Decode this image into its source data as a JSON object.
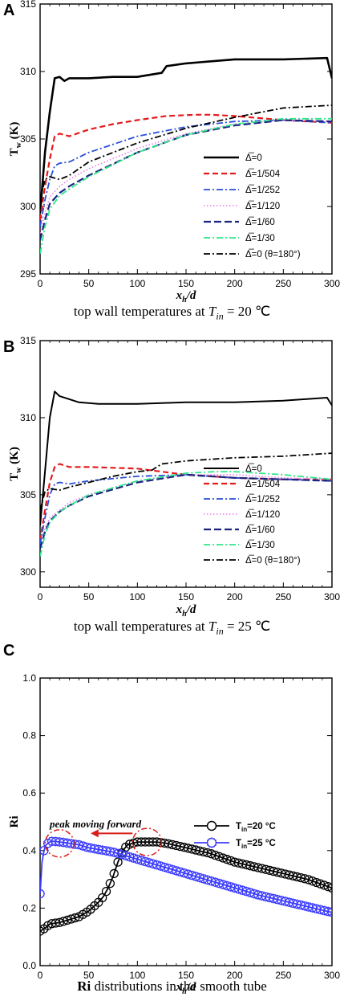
{
  "chart_data": [
    {
      "panel_letter": "A",
      "type": "line",
      "caption_prefix": "top wall temperatures at ",
      "caption_math": "T",
      "caption_sub": "in",
      "caption_suffix": " = 20 ℃",
      "xlabel": "x",
      "xlabel_sub": "h",
      "xlabel_tail": "/d",
      "ylabel": "T",
      "ylabel_sub": "w",
      "ylabel_tail": " (K)",
      "xlim": [
        0,
        300
      ],
      "ylim": [
        295,
        315
      ],
      "xticks": [
        "0",
        "50",
        "100",
        "150",
        "200",
        "250",
        "300"
      ],
      "yticks": [
        "295",
        "300",
        "305",
        "310",
        "315"
      ],
      "xtick_values": [
        0,
        50,
        100,
        150,
        200,
        250,
        300
      ],
      "ytick_values": [
        295,
        300,
        305,
        310,
        315
      ],
      "legend_position": "right",
      "series": [
        {
          "name": "Δ̅=0",
          "color": "#000000",
          "dash": "",
          "width": 2.6,
          "x": [
            0,
            5,
            10,
            15,
            20,
            25,
            30,
            50,
            75,
            100,
            125,
            130,
            150,
            200,
            250,
            295,
            300
          ],
          "y": [
            299.5,
            304,
            307,
            309.5,
            309.6,
            309.3,
            309.5,
            309.5,
            309.6,
            309.6,
            309.9,
            310.4,
            310.6,
            310.9,
            310.9,
            311.0,
            309.5
          ]
        },
        {
          "name": "Δ̅=1/504",
          "color": "#e41a1c",
          "dash": "7,4",
          "width": 2.2,
          "x": [
            0,
            5,
            10,
            15,
            20,
            30,
            50,
            75,
            100,
            130,
            160,
            175,
            200,
            250,
            300
          ],
          "y": [
            299,
            301.5,
            303.5,
            305.2,
            305.4,
            305.2,
            305.7,
            306.1,
            306.4,
            306.7,
            306.8,
            306.8,
            306.7,
            306.4,
            306.2
          ]
        },
        {
          "name": "Δ̅=1/252",
          "color": "#2b4fd8",
          "dash": "8,3,2,3",
          "width": 1.8,
          "x": [
            0,
            5,
            10,
            15,
            20,
            30,
            50,
            100,
            150,
            200,
            250,
            300
          ],
          "y": [
            298.5,
            300.5,
            302,
            303.0,
            303.2,
            303.3,
            304.0,
            305.2,
            305.9,
            306.3,
            306.4,
            306.2
          ]
        },
        {
          "name": "Δ̅=1/120",
          "color": "#e87ce8",
          "dash": "1.5,2.5",
          "width": 1.6,
          "x": [
            0,
            5,
            10,
            20,
            30,
            50,
            100,
            150,
            200,
            250,
            300
          ],
          "y": [
            298,
            299.5,
            300.7,
            301.5,
            302.0,
            302.8,
            304.3,
            305.4,
            306.1,
            306.4,
            306.3
          ]
        },
        {
          "name": "Δ̅=1/60",
          "color": "#1a237e",
          "dash": "9,4",
          "width": 2.2,
          "x": [
            0,
            5,
            10,
            20,
            30,
            50,
            100,
            150,
            200,
            250,
            300
          ],
          "y": [
            297.5,
            299,
            300.2,
            301.0,
            301.5,
            302.3,
            304.0,
            305.3,
            306.0,
            306.4,
            306.3
          ]
        },
        {
          "name": "Δ̅=1/30",
          "color": "#2ee88a",
          "dash": "8,3,2,3",
          "width": 1.8,
          "x": [
            0,
            5,
            10,
            20,
            30,
            50,
            100,
            150,
            200,
            250,
            300
          ],
          "y": [
            296.5,
            298.5,
            299.8,
            300.8,
            301.3,
            302.2,
            304.0,
            305.3,
            306.1,
            306.5,
            306.5
          ]
        },
        {
          "name": "Δ̅=0 (θ=180°)",
          "color": "#000000",
          "dash": "8,3,2,3",
          "width": 1.8,
          "x": [
            0,
            5,
            10,
            20,
            30,
            50,
            100,
            150,
            200,
            250,
            300
          ],
          "y": [
            300.5,
            302,
            302.2,
            302.0,
            302.3,
            303.3,
            304.7,
            305.8,
            306.6,
            307.3,
            307.5
          ]
        }
      ]
    },
    {
      "panel_letter": "B",
      "type": "line",
      "caption_prefix": "top wall temperatures at ",
      "caption_math": "T",
      "caption_sub": "in",
      "caption_suffix": " = 25 ℃",
      "xlabel": "x",
      "xlabel_sub": "h",
      "xlabel_tail": "/d",
      "ylabel": "T",
      "ylabel_sub": "w",
      "ylabel_tail": " (K)",
      "xlim": [
        0,
        300
      ],
      "ylim": [
        299,
        315
      ],
      "xticks": [
        "0",
        "50",
        "100",
        "150",
        "200",
        "250",
        "300"
      ],
      "yticks": [
        "300",
        "305",
        "310",
        "315"
      ],
      "xtick_values": [
        0,
        50,
        100,
        150,
        200,
        250,
        300
      ],
      "ytick_values": [
        300,
        305,
        310,
        315
      ],
      "legend_position": "right",
      "series": [
        {
          "name": "Δ̅=0",
          "color": "#000000",
          "dash": "",
          "width": 2.0,
          "x": [
            0,
            5,
            10,
            15,
            20,
            40,
            60,
            100,
            150,
            200,
            250,
            295,
            300
          ],
          "y": [
            303,
            306.5,
            310,
            311.7,
            311.4,
            311.0,
            310.9,
            310.9,
            311.0,
            311.0,
            311.1,
            311.3,
            310.8
          ]
        },
        {
          "name": "Δ̅=1/504",
          "color": "#e41a1c",
          "dash": "7,4",
          "width": 2.2,
          "x": [
            0,
            5,
            10,
            15,
            20,
            30,
            50,
            100,
            150,
            200,
            250,
            300
          ],
          "y": [
            302,
            304,
            305.8,
            306.8,
            307.0,
            306.8,
            306.8,
            306.7,
            306.3,
            306.1,
            306.0,
            306.0
          ]
        },
        {
          "name": "Δ̅=1/252",
          "color": "#2b4fd8",
          "dash": "8,3,2,3",
          "width": 1.8,
          "x": [
            0,
            5,
            10,
            15,
            20,
            30,
            50,
            100,
            150,
            200,
            250,
            300
          ],
          "y": [
            301.8,
            303.5,
            305.0,
            305.7,
            305.8,
            305.7,
            305.9,
            306.2,
            306.3,
            306.1,
            306.0,
            305.9
          ]
        },
        {
          "name": "Δ̅=1/120",
          "color": "#e87ce8",
          "dash": "1.5,2.5",
          "width": 1.6,
          "x": [
            0,
            5,
            10,
            20,
            30,
            50,
            100,
            150,
            200,
            250,
            300
          ],
          "y": [
            301.5,
            302.8,
            303.5,
            304.0,
            304.5,
            305.0,
            305.9,
            306.3,
            306.3,
            306.1,
            306.0
          ]
        },
        {
          "name": "Δ̅=1/60",
          "color": "#1a237e",
          "dash": "9,4",
          "width": 2.2,
          "x": [
            0,
            5,
            10,
            20,
            30,
            50,
            100,
            150,
            200,
            250,
            300
          ],
          "y": [
            301.5,
            302.6,
            303.3,
            303.9,
            304.3,
            304.9,
            305.8,
            306.3,
            306.1,
            306.0,
            305.9
          ]
        },
        {
          "name": "Δ̅=1/30",
          "color": "#2ee88a",
          "dash": "8,3,2,3",
          "width": 1.8,
          "x": [
            0,
            5,
            10,
            20,
            30,
            50,
            100,
            150,
            180,
            200,
            250,
            300
          ],
          "y": [
            301.0,
            302.4,
            303.2,
            303.9,
            304.3,
            305.0,
            305.9,
            306.4,
            306.5,
            306.5,
            306.3,
            306.0
          ]
        },
        {
          "name": "Δ̅=0 (θ=180°)",
          "color": "#000000",
          "dash": "8,3,2,3",
          "width": 1.8,
          "x": [
            0,
            5,
            10,
            20,
            30,
            50,
            75,
            100,
            115,
            125,
            150,
            200,
            250,
            300
          ],
          "y": [
            304,
            305.2,
            305.4,
            305.3,
            305.5,
            305.8,
            306.2,
            306.5,
            306.6,
            307.0,
            307.2,
            307.4,
            307.5,
            307.7
          ]
        }
      ]
    },
    {
      "panel_letter": "C",
      "type": "line",
      "caption_prefix": "",
      "caption_bold": "Ri",
      "caption_suffix": "  distributions in the smooth tube",
      "xlabel": "x",
      "xlabel_sub": "h",
      "xlabel_tail": "/d",
      "ylabel": "Ri",
      "ylabel_sub": "",
      "ylabel_tail": "",
      "xlim": [
        0,
        300
      ],
      "ylim": [
        0,
        1.0
      ],
      "xticks": [
        "0",
        "50",
        "100",
        "150",
        "200",
        "250",
        "300"
      ],
      "yticks": [
        "0.0",
        "0.2",
        "0.4",
        "0.6",
        "0.8",
        "1.0"
      ],
      "xtick_values": [
        0,
        50,
        100,
        150,
        200,
        250,
        300
      ],
      "ytick_values": [
        0,
        0.2,
        0.4,
        0.6,
        0.8,
        1.0
      ],
      "legend_position": "right",
      "annotation": "peak moving forward",
      "series": [
        {
          "name": "T",
          "name_sub": "in",
          "name_tail": "=20 °C",
          "color": "#000000",
          "marker": "circle",
          "width": 1.8,
          "x": [
            0,
            5,
            10,
            20,
            30,
            40,
            50,
            60,
            65,
            70,
            75,
            80,
            85,
            90,
            95,
            100,
            110,
            120,
            130,
            150,
            175,
            200,
            225,
            250,
            275,
            300
          ],
          "y": [
            0.12,
            0.13,
            0.145,
            0.15,
            0.16,
            0.17,
            0.19,
            0.22,
            0.24,
            0.27,
            0.31,
            0.36,
            0.4,
            0.42,
            0.425,
            0.43,
            0.43,
            0.43,
            0.425,
            0.41,
            0.39,
            0.36,
            0.34,
            0.32,
            0.3,
            0.27
          ]
        },
        {
          "name": "T",
          "name_sub": "in",
          "name_tail": "=25 °C",
          "color": "#3b3bff",
          "marker": "star",
          "width": 1.8,
          "x": [
            0,
            2,
            4,
            6,
            8,
            10,
            12,
            15,
            20,
            25,
            30,
            40,
            50,
            75,
            100,
            125,
            150,
            175,
            200,
            225,
            250,
            275,
            300
          ],
          "y": [
            0.25,
            0.36,
            0.4,
            0.42,
            0.425,
            0.43,
            0.432,
            0.432,
            0.43,
            0.428,
            0.425,
            0.42,
            0.41,
            0.395,
            0.37,
            0.345,
            0.32,
            0.295,
            0.27,
            0.245,
            0.225,
            0.205,
            0.185
          ]
        }
      ],
      "peak_circles": [
        {
          "x": 20,
          "y": 0.425
        },
        {
          "x": 110,
          "y": 0.43
        }
      ]
    }
  ]
}
